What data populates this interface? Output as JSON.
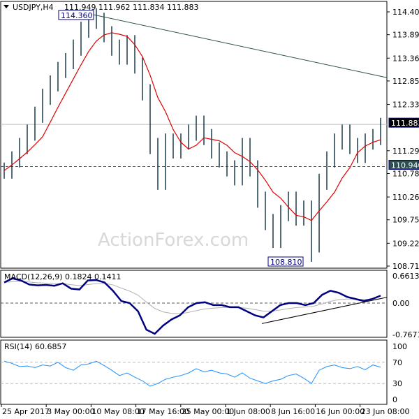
{
  "header": {
    "symbol": "USDJPY,H4",
    "ohlc": "111.949 111.962 111.834 111.883"
  },
  "watermark": "ActionForex.com",
  "chart_data": [
    {
      "type": "bar",
      "title": "USDJPY,H4",
      "ylim": [
        108.715,
        114.4
      ],
      "yticks": [
        "114.400",
        "113.890",
        "113.365",
        "112.855",
        "112.330",
        "111.295",
        "110.785",
        "110.260",
        "109.750",
        "109.225",
        "108.715"
      ],
      "ytick_values": [
        114.4,
        113.89,
        113.365,
        112.855,
        112.33,
        111.295,
        110.785,
        110.26,
        109.75,
        109.225,
        108.715
      ],
      "current_price": 111.883,
      "current_label": "111.883",
      "level": 110.94,
      "level_label": "110.940",
      "high_label": "114.360",
      "high": 114.36,
      "low_label": "108.810",
      "low": 108.81,
      "closes": [
        110.85,
        111.1,
        111.4,
        111.7,
        112.1,
        112.5,
        112.8,
        113.1,
        113.3,
        113.6,
        114.0,
        114.3,
        114.2,
        113.9,
        113.6,
        113.4,
        113.7,
        113.2,
        112.6,
        111.4,
        110.6,
        111.5,
        111.3,
        111.5,
        111.7,
        111.9,
        111.6,
        111.3,
        111.1,
        110.9,
        110.7,
        111.4,
        110.9,
        110.2,
        109.7,
        109.3,
        109.9,
        110.2,
        109.8,
        110.0,
        109.2,
        110.6,
        111.1,
        111.5,
        111.7,
        111.4,
        111.2,
        111.5,
        111.6,
        111.85
      ],
      "trendline": [
        114.36,
        112.93
      ],
      "xticks": [
        "25 Apr 2017",
        "3 May 00:00",
        "10 May 08:00",
        "17 May 16:00",
        "25 May 00:00",
        "1 Jun 08:00",
        "8 Jun 16:00",
        "16 Jun 00:00",
        "23 Jun 08:00"
      ]
    },
    {
      "type": "line",
      "title": "MACD(12,26,9) 0.1824 0.1411",
      "ylim": [
        -0.7671,
        0.6613
      ],
      "yticks": [
        "0.6613",
        "0.00",
        "-0.7671"
      ],
      "macd": [
        0.5,
        0.6,
        0.55,
        0.45,
        0.43,
        0.44,
        0.42,
        0.48,
        0.35,
        0.33,
        0.55,
        0.56,
        0.5,
        0.3,
        0.05,
        0.0,
        -0.2,
        -0.65,
        -0.75,
        -0.55,
        -0.4,
        -0.3,
        -0.1,
        0.0,
        0.02,
        -0.05,
        -0.05,
        -0.1,
        -0.1,
        -0.2,
        -0.3,
        -0.35,
        -0.2,
        -0.05,
        0.0,
        0.0,
        -0.05,
        0.0,
        0.2,
        0.3,
        0.25,
        0.15,
        0.1,
        0.05,
        0.1,
        0.18
      ],
      "support_line": [
        -0.5,
        0.14
      ]
    },
    {
      "type": "line",
      "title": "RSI(14) 60.6857",
      "ylim": [
        0,
        100
      ],
      "yticks": [
        "100",
        "70",
        "30",
        "0"
      ],
      "levels": [
        70,
        30
      ],
      "values": [
        72,
        68,
        62,
        63,
        60,
        65,
        63,
        70,
        60,
        55,
        65,
        67,
        72,
        64,
        55,
        45,
        50,
        42,
        35,
        25,
        30,
        38,
        42,
        45,
        50,
        58,
        52,
        55,
        50,
        48,
        42,
        50,
        40,
        35,
        30,
        35,
        38,
        45,
        48,
        40,
        30,
        55,
        62,
        65,
        60,
        58,
        62,
        56,
        65,
        60.7
      ]
    }
  ],
  "colors": {
    "bars": "#1b3a4b",
    "ma": "#e00000",
    "macd": "#000080",
    "signal": "#b0b0b0",
    "rsi": "#1e90ff"
  }
}
